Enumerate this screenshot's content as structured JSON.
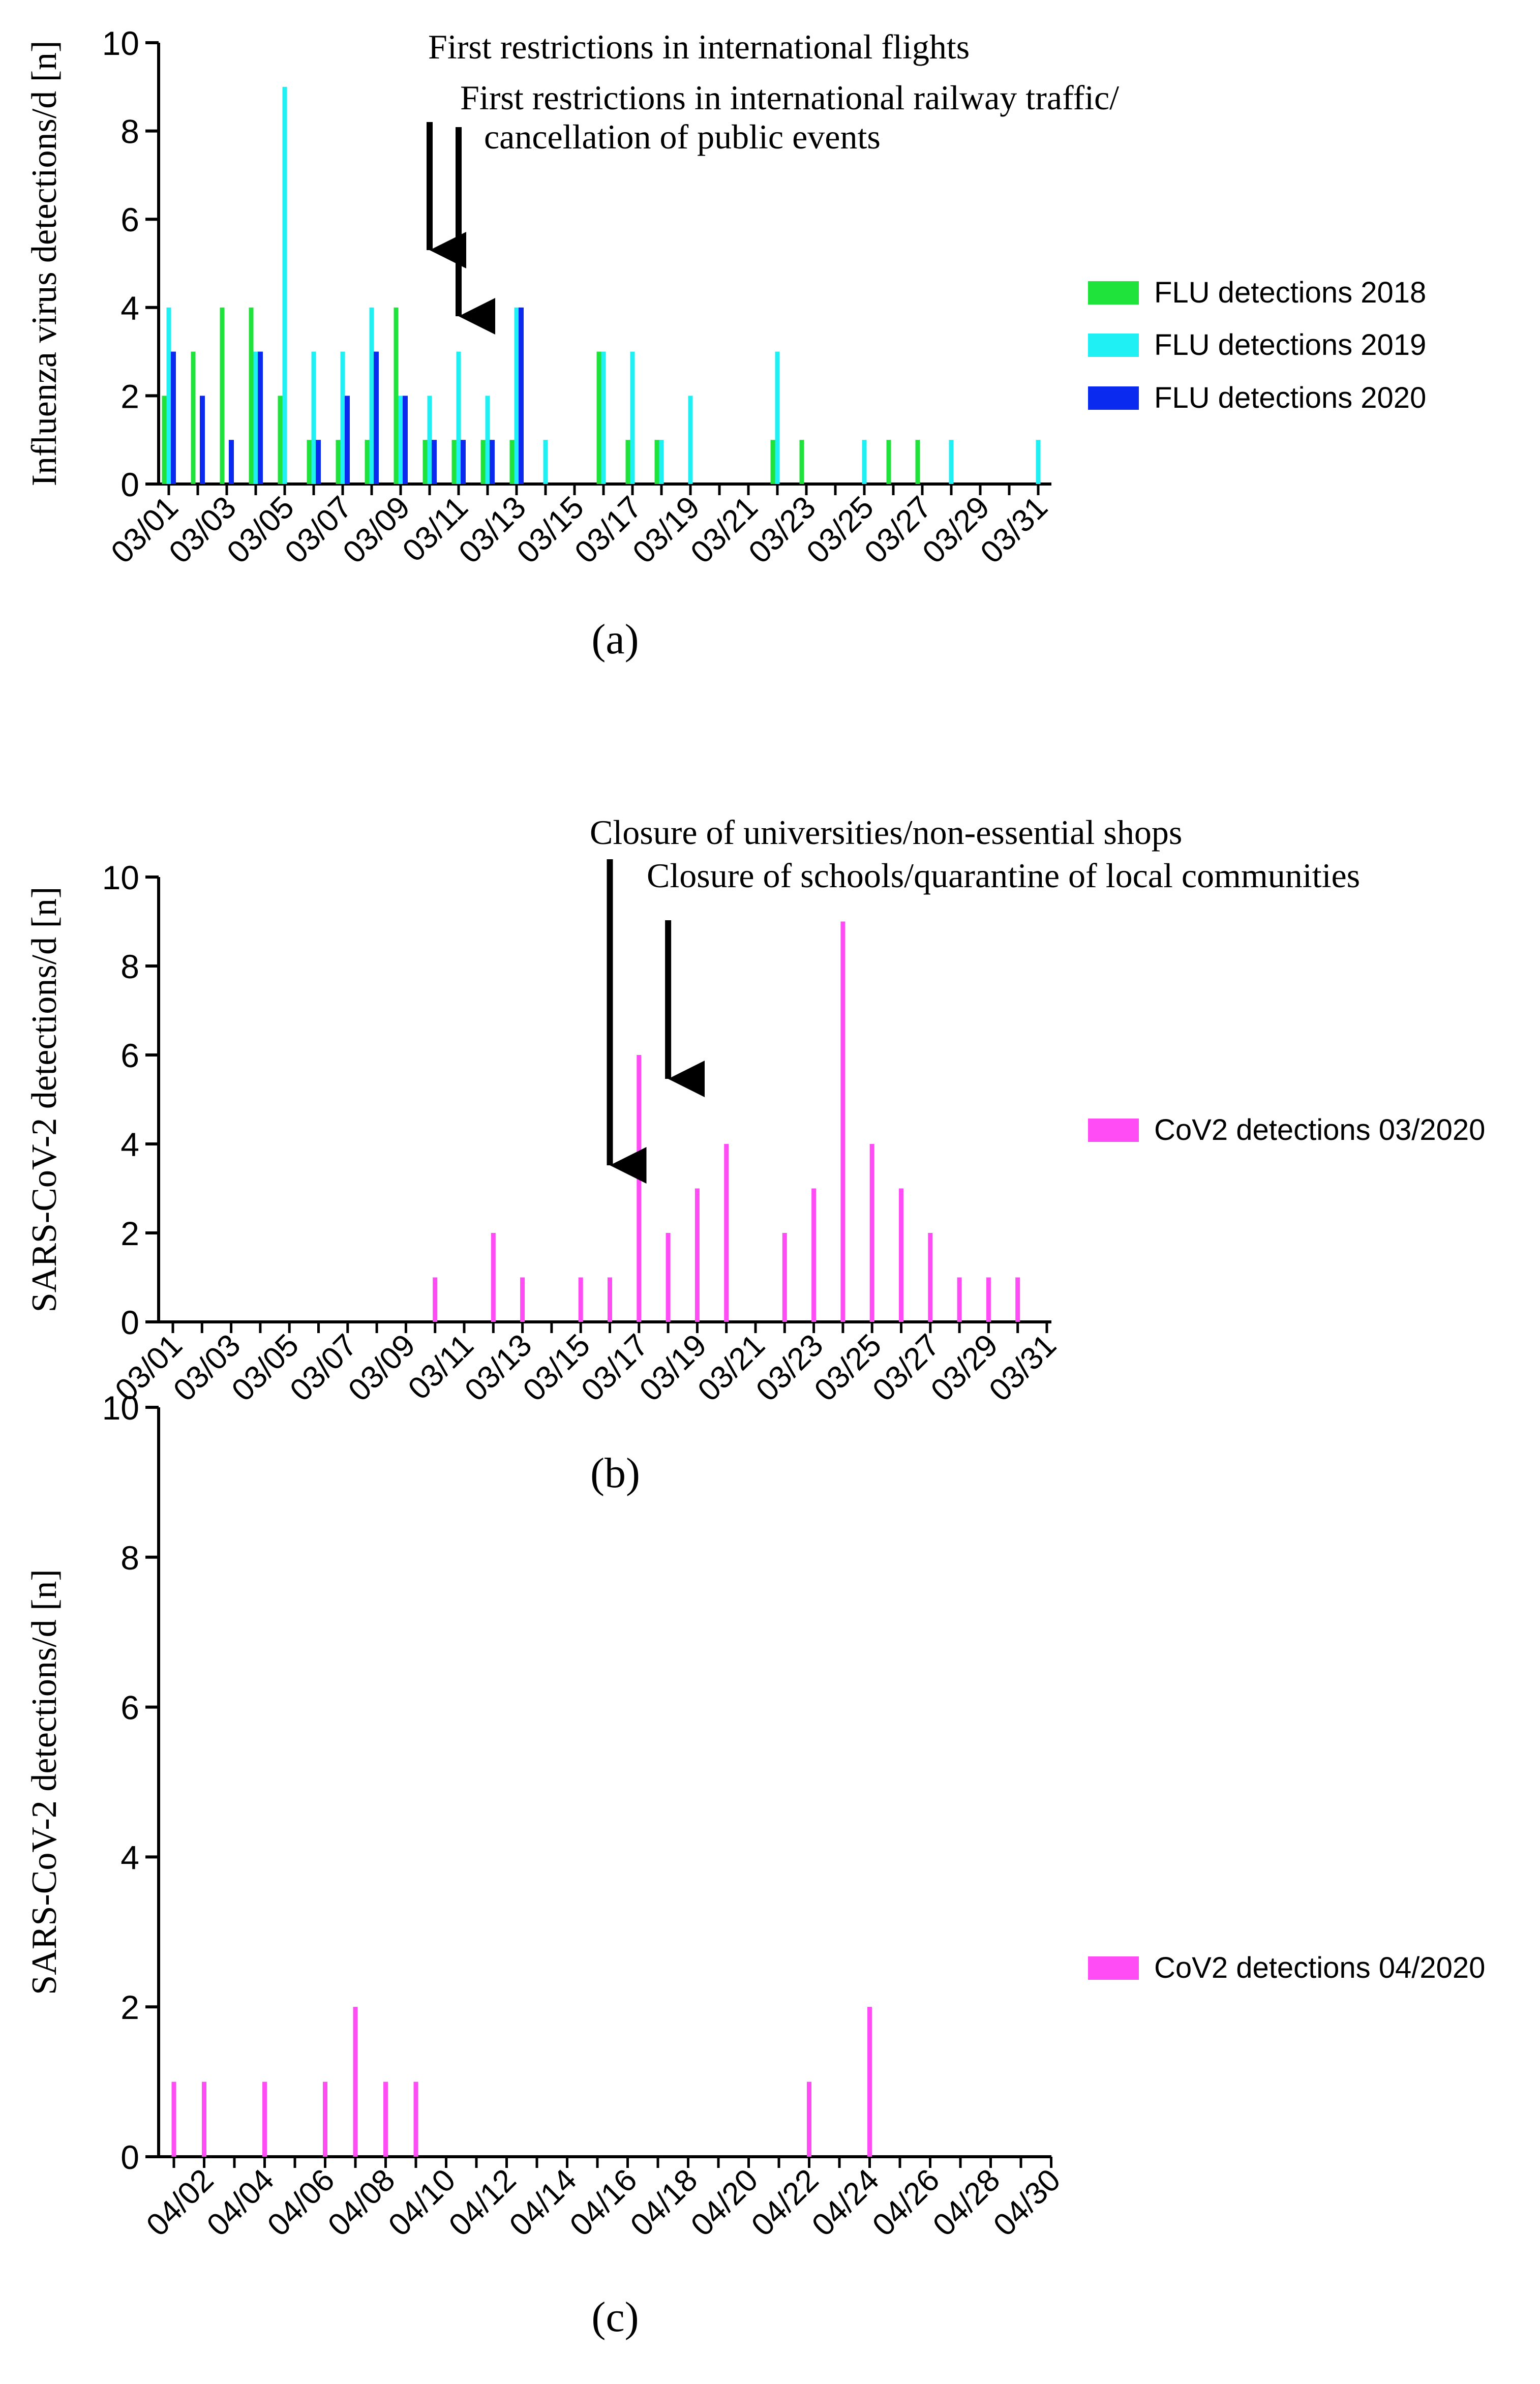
{
  "chart_data": [
    {
      "panel": "a",
      "type": "bar",
      "ylabel": "Influenza virus detections/d [n]",
      "ylim": [
        0,
        10
      ],
      "yticks": [
        0,
        2,
        4,
        6,
        8,
        10
      ],
      "day_count": 31,
      "xtick_labels": [
        "03/01",
        "03/03",
        "03/05",
        "03/07",
        "03/09",
        "03/11",
        "03/13",
        "03/15",
        "03/17",
        "03/19",
        "03/21",
        "03/23",
        "03/25",
        "03/27",
        "03/29",
        "03/31"
      ],
      "xtick_days": [
        1,
        3,
        5,
        7,
        9,
        11,
        13,
        15,
        17,
        19,
        21,
        23,
        25,
        27,
        29,
        31
      ],
      "caption": "(a)",
      "legend_position": "right",
      "series": [
        {
          "name": "FLU detections 2018",
          "color": "#1fe23b",
          "values": [
            2,
            3,
            4,
            4,
            2,
            1,
            1,
            1,
            4,
            1,
            1,
            1,
            1,
            0,
            0,
            3,
            1,
            1,
            0,
            0,
            0,
            1,
            1,
            0,
            0,
            1,
            1,
            0,
            0,
            0,
            0
          ]
        },
        {
          "name": "FLU detections 2019",
          "color": "#1ff0f4",
          "values": [
            4,
            0,
            0,
            3,
            9,
            3,
            3,
            4,
            2,
            2,
            3,
            2,
            4,
            1,
            0,
            3,
            3,
            1,
            2,
            0,
            0,
            3,
            0,
            0,
            1,
            0,
            0,
            1,
            0,
            0,
            1
          ]
        },
        {
          "name": "FLU detections 2020",
          "color": "#0b2af0",
          "values": [
            3,
            2,
            1,
            3,
            0,
            1,
            2,
            3,
            2,
            1,
            1,
            1,
            4,
            0,
            0,
            0,
            0,
            0,
            0,
            0,
            0,
            0,
            0,
            0,
            0,
            0,
            0,
            0,
            0,
            0,
            0
          ]
        }
      ],
      "annotations": [
        {
          "text": "First restrictions in international flights",
          "day": 10
        },
        {
          "text": "First restrictions in international railway traffic/",
          "text2": "cancellation of public events",
          "day": 11
        }
      ]
    },
    {
      "panel": "b",
      "type": "bar",
      "ylabel": "SARS-CoV-2 detections/d [n]",
      "ylim": [
        0,
        10
      ],
      "yticks": [
        0,
        2,
        4,
        6,
        8,
        10
      ],
      "day_count": 31,
      "xtick_labels": [
        "03/01",
        "03/03",
        "03/05",
        "03/07",
        "03/09",
        "03/11",
        "03/13",
        "03/15",
        "03/17",
        "03/19",
        "03/21",
        "03/23",
        "03/25",
        "03/27",
        "03/29",
        "03/31"
      ],
      "xtick_days": [
        1,
        3,
        5,
        7,
        9,
        11,
        13,
        15,
        17,
        19,
        21,
        23,
        25,
        27,
        29,
        31
      ],
      "caption": "(b)",
      "legend_position": "right",
      "series": [
        {
          "name": "CoV2 detections 03/2020",
          "color": "#ff4cf5",
          "values": [
            0,
            0,
            0,
            0,
            0,
            0,
            0,
            0,
            0,
            1,
            0,
            2,
            1,
            0,
            1,
            1,
            6,
            2,
            3,
            4,
            0,
            2,
            3,
            9,
            4,
            3,
            2,
            1,
            1,
            1,
            0
          ]
        }
      ],
      "annotations": [
        {
          "text": "Closure of universities/non-essential shops",
          "day": 16
        },
        {
          "text": "Closure of schools/quarantine of local communities",
          "day": 18
        }
      ]
    },
    {
      "panel": "c",
      "type": "bar",
      "ylabel": "SARS-CoV-2 detections/d [n]",
      "ylim": [
        0,
        10
      ],
      "yticks": [
        0,
        2,
        4,
        6,
        8,
        10
      ],
      "day_count": 30,
      "xtick_labels": [
        "04/02",
        "04/04",
        "04/06",
        "04/08",
        "04/10",
        "04/12",
        "04/14",
        "04/16",
        "04/18",
        "04/20",
        "04/22",
        "04/24",
        "04/26",
        "04/28",
        "04/30"
      ],
      "xtick_days": [
        2,
        4,
        6,
        8,
        10,
        12,
        14,
        16,
        18,
        20,
        22,
        24,
        26,
        28,
        30
      ],
      "caption": "(c)",
      "legend_position": "right",
      "series": [
        {
          "name": "CoV2 detections 04/2020",
          "color": "#ff4cf5",
          "values": [
            1,
            1,
            0,
            1,
            0,
            1,
            2,
            1,
            1,
            0,
            0,
            0,
            0,
            0,
            0,
            0,
            0,
            0,
            0,
            0,
            0,
            1,
            0,
            2,
            0,
            0,
            0,
            0,
            0,
            0
          ]
        }
      ],
      "annotations": []
    }
  ]
}
